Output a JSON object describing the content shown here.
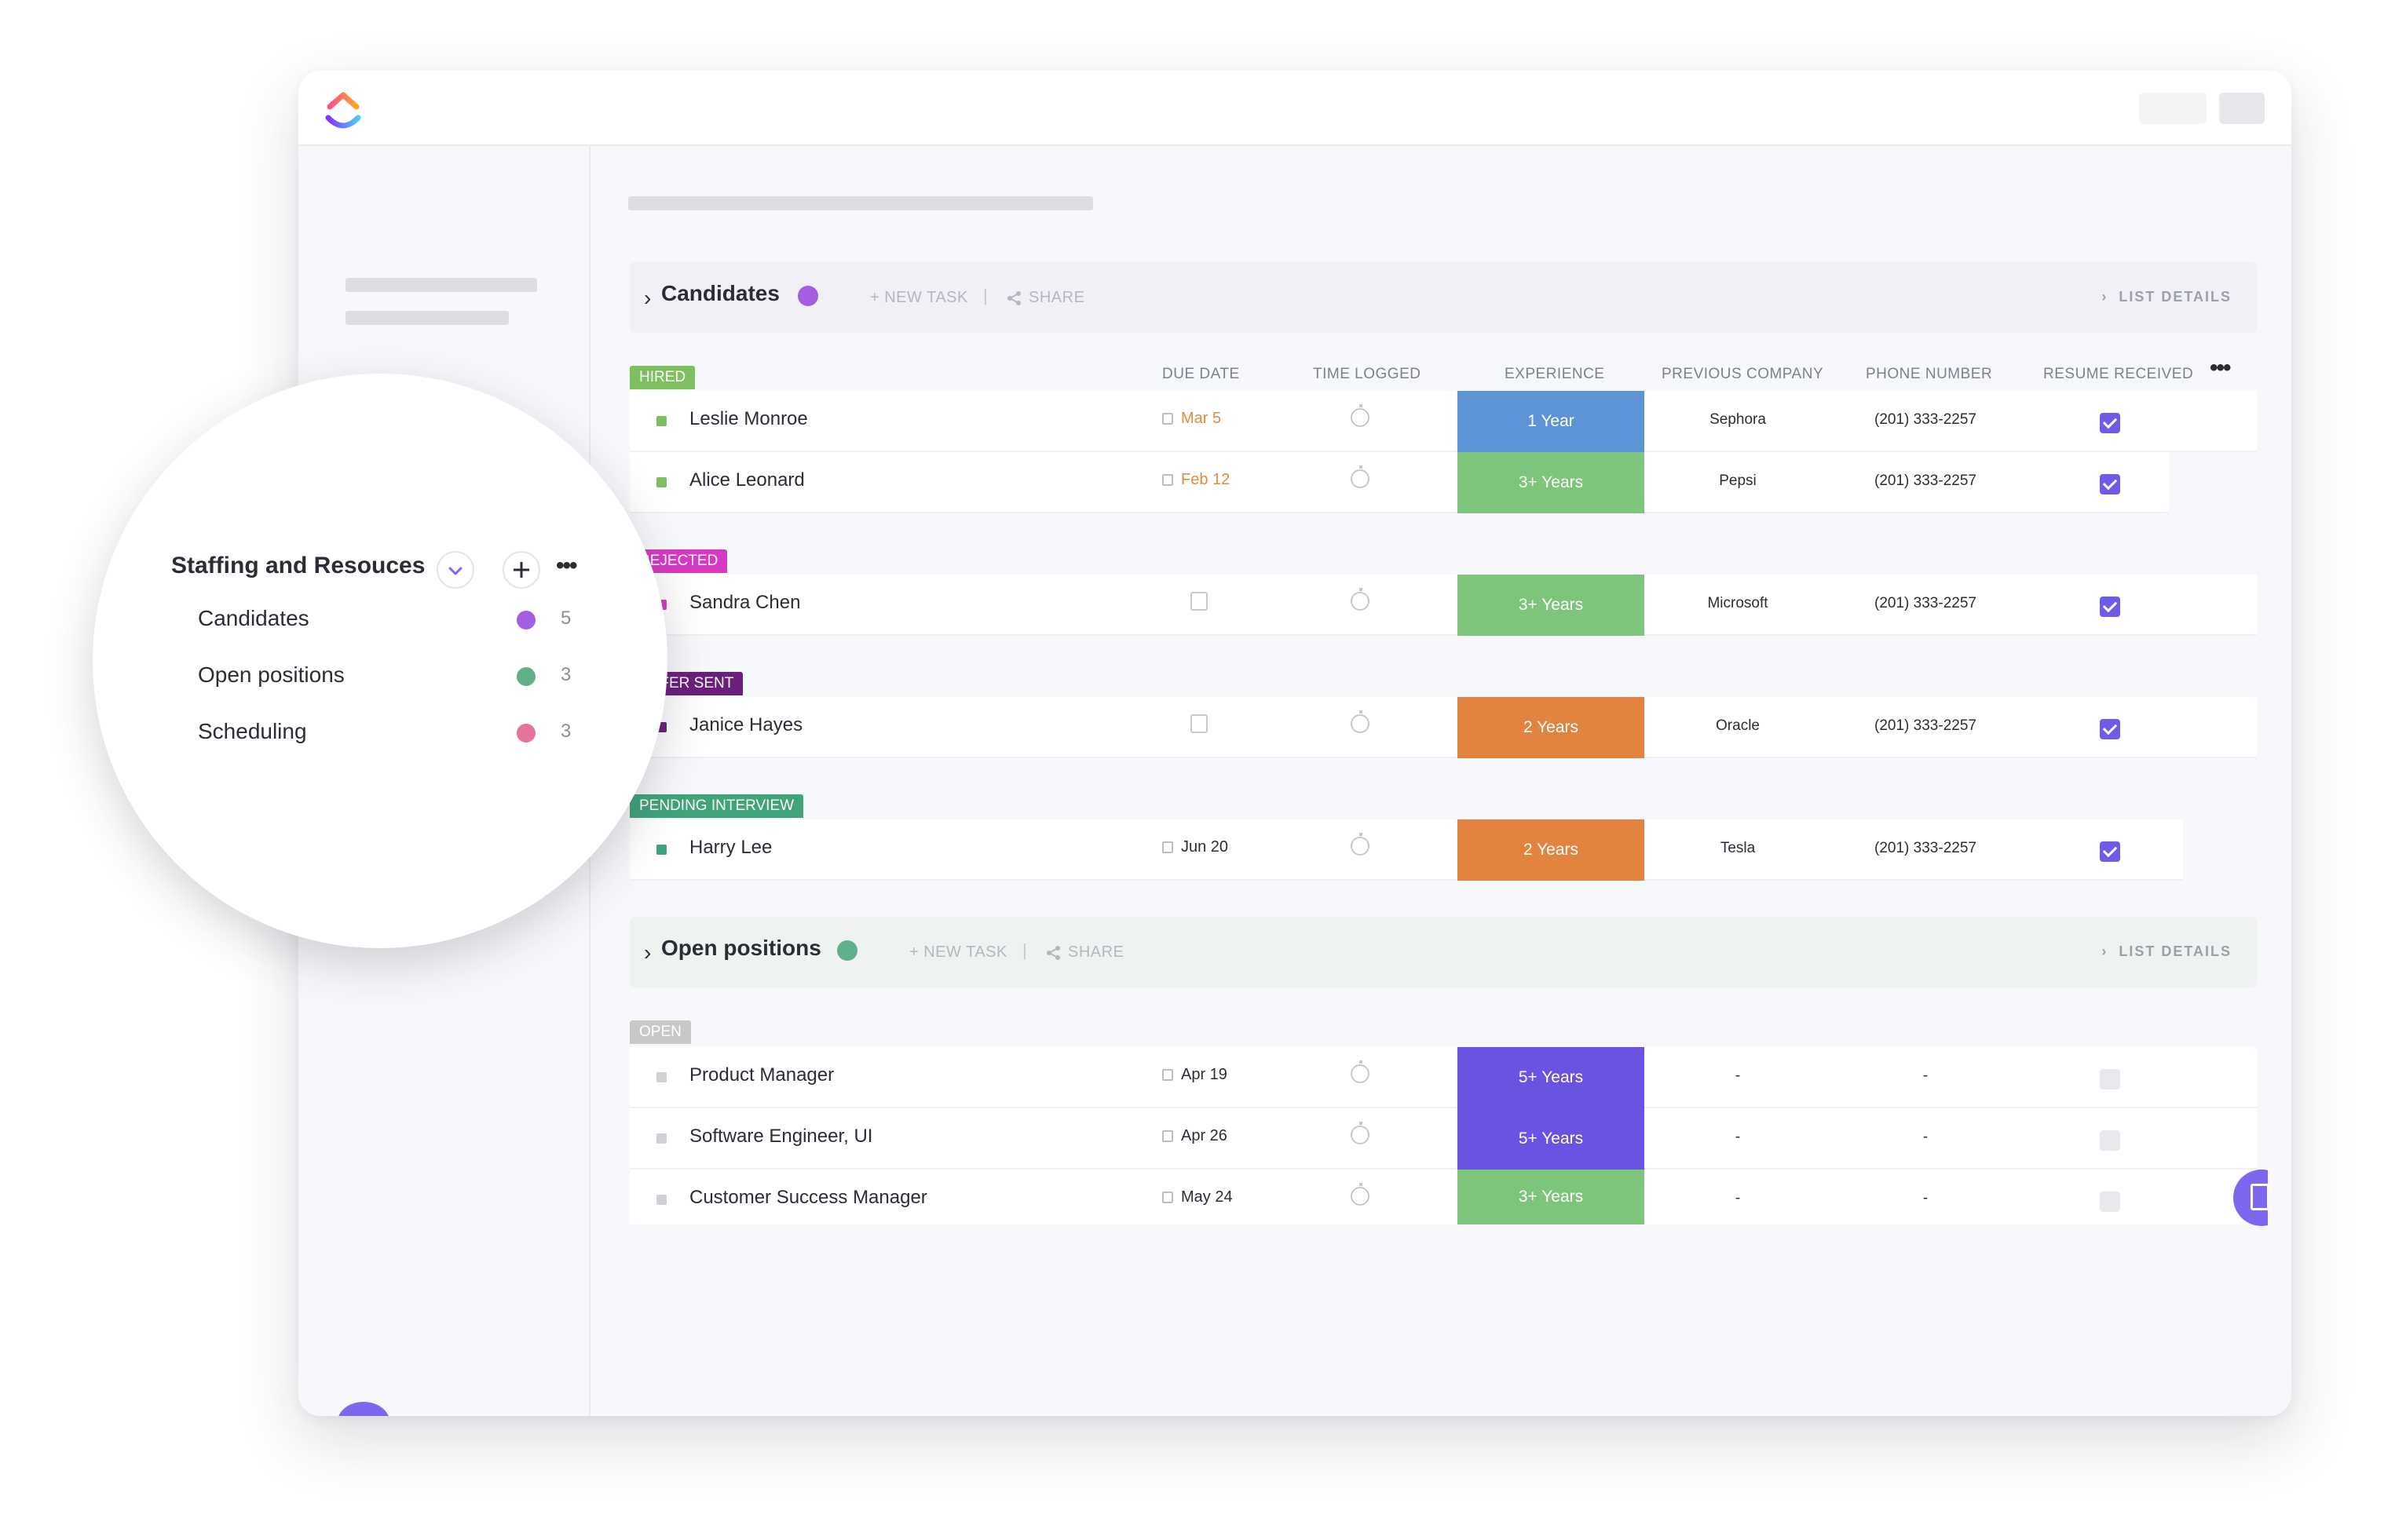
{
  "colors": {
    "purple": "#a45de2",
    "teal": "#5fb08b",
    "pink": "#e4749a",
    "hired": "#7cc05f",
    "rejected": "#d63ac2",
    "offer_sent": "#6a1f7d",
    "pending": "#3fa47a",
    "open": "#c8c8c8",
    "exp_blue": "#5d94d6",
    "exp_green": "#7cc57a",
    "exp_orange": "#e2843f",
    "exp_purple": "#6c52e0",
    "accent": "#7b68ee"
  },
  "sidebar_zoom": {
    "title": "Staffing and Resouces",
    "chevron_icon": "chevron-down-icon",
    "plus_icon": "plus-icon",
    "more_icon": "more-horizontal-icon",
    "items": [
      {
        "label": "Candidates",
        "count": "5",
        "color": "#a45de2"
      },
      {
        "label": "Open positions",
        "count": "3",
        "color": "#5fb08b"
      },
      {
        "label": "Scheduling",
        "count": "3",
        "color": "#e4749a"
      }
    ]
  },
  "columns": {
    "due_date": "DUE DATE",
    "time_logged": "TIME LOGGED",
    "experience": "EXPERIENCE",
    "previous_company": "PREVIOUS COMPANY",
    "phone_number": "PHONE NUMBER",
    "resume_received": "RESUME RECEIVED"
  },
  "candidates": {
    "name": "Candidates",
    "new_task": "+ NEW TASK",
    "separator": "|",
    "share": "SHARE",
    "list_details": "LIST DETAILS",
    "statuses": {
      "hired": "HIRED",
      "rejected": "REJECTED",
      "offer_sent": "OFFER SENT",
      "pending": "PENDING INTERVIEW"
    },
    "rows": [
      {
        "name": "Leslie Monroe",
        "due": "Mar 5",
        "experience": "1 Year",
        "company": "Sephora",
        "phone": "(201) 333-2257",
        "resume": true
      },
      {
        "name": "Alice Leonard",
        "due": "Feb 12",
        "experience": "3+ Years",
        "company": "Pepsi",
        "phone": "(201) 333-2257",
        "resume": true
      },
      {
        "name": "Sandra Chen",
        "due": "",
        "experience": "3+ Years",
        "company": "Microsoft",
        "phone": "(201) 333-2257",
        "resume": true
      },
      {
        "name": "Janice Hayes",
        "due": "",
        "experience": "2 Years",
        "company": "Oracle",
        "phone": "(201) 333-2257",
        "resume": true
      },
      {
        "name": "Harry Lee",
        "due": "Jun 20",
        "experience": "2 Years",
        "company": "Tesla",
        "phone": "(201) 333-2257",
        "resume": true
      }
    ]
  },
  "open_positions": {
    "name": "Open positions",
    "new_task": "+ NEW TASK",
    "separator": "|",
    "share": "SHARE",
    "list_details": "LIST DETAILS",
    "status": "OPEN",
    "rows": [
      {
        "name": "Product Manager",
        "due": "Apr 19",
        "experience": "5+ Years",
        "company": "-",
        "phone": "-",
        "resume": false
      },
      {
        "name": "Software Engineer, UI",
        "due": "Apr 26",
        "experience": "5+ Years",
        "company": "-",
        "phone": "-",
        "resume": false
      },
      {
        "name": "Customer Success Manager",
        "due": "May 24",
        "experience": "3+ Years",
        "company": "-",
        "phone": "-",
        "resume": false
      }
    ]
  },
  "icons": {
    "logo": "clickup-logo",
    "chat": "chat-bubble-icon",
    "calendar": "calendar-icon",
    "timer": "stopwatch-icon",
    "share": "share-icon",
    "column_more": "more-horizontal-icon",
    "notepad": "notepad-icon"
  }
}
